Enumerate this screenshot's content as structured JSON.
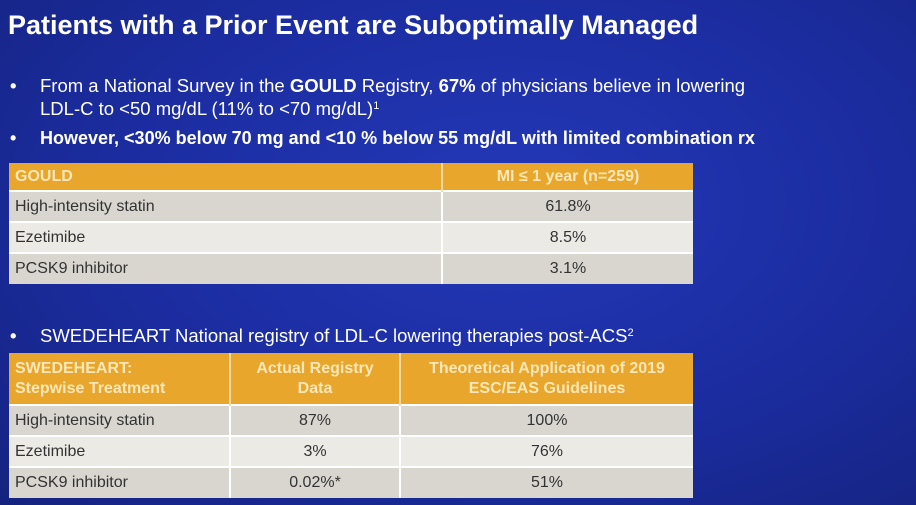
{
  "slide": {
    "title": "Patients with a Prior Event are Suboptimally Managed",
    "bullet1": {
      "line1_a": "From a National Survey in the ",
      "line1_b": "GOULD",
      "line1_c": " Registry, ",
      "line1_d": "67%",
      "line1_e": " of physicians believe in lowering",
      "line2": "LDL-C to <50 mg/dL (11% to <70 mg/dL)",
      "line2_sup": "1"
    },
    "bullet2": "However, <30% below 70 mg and <10 % below 55 mg/dL with limited combination rx",
    "bullet3": {
      "text": "SWEDEHEART National registry of LDL-C lowering therapies post-ACS",
      "sup": "2"
    },
    "bullet_glyph": "•"
  },
  "gould_table": {
    "headers": [
      "GOULD",
      "MI ≤ 1 year (n=259)"
    ],
    "rows": [
      [
        "High-intensity statin",
        "61.8%"
      ],
      [
        "Ezetimibe",
        "8.5%"
      ],
      [
        "PCSK9 inhibitor",
        "3.1%"
      ]
    ]
  },
  "swedeheart_table": {
    "headers": [
      [
        "SWEDEHEART:",
        "Stepwise Treatment"
      ],
      [
        "Actual Registry",
        "Data"
      ],
      [
        "Theoretical Application of 2019",
        "ESC/EAS Guidelines"
      ]
    ],
    "rows": [
      [
        "High-intensity statin",
        "87%",
        "100%"
      ],
      [
        "Ezetimibe",
        "3%",
        "76%"
      ],
      [
        "PCSK9 inhibitor",
        "0.02%*",
        "51%"
      ]
    ]
  },
  "colors": {
    "background": "#1c2fa6",
    "header_gold": "#e8a72c",
    "header_text": "#fbe7b8",
    "row_odd": "#d9d6cf",
    "row_even": "#eceae4"
  }
}
